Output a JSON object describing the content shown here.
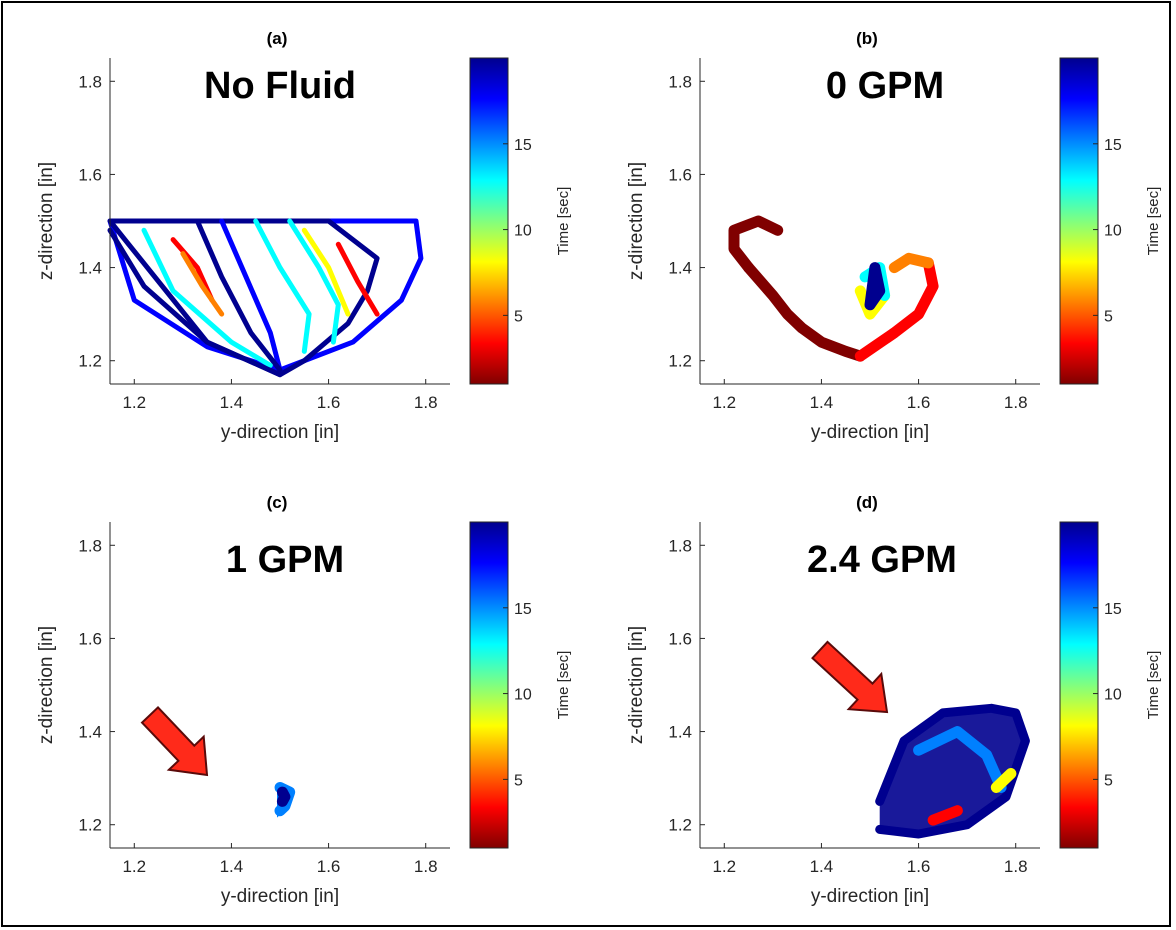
{
  "colormap": [
    "#800000",
    "#ff0000",
    "#ff8000",
    "#ffff00",
    "#80ff80",
    "#00ffff",
    "#0080ff",
    "#0000ff",
    "#00008f"
  ],
  "chart_data": [
    {
      "type": "line",
      "panel": "(a)",
      "annotation": "No Fluid",
      "xlabel": "y-direction [in]",
      "ylabel": "z-direction [in]",
      "xlim": [
        1.15,
        1.85
      ],
      "ylim": [
        1.15,
        1.85
      ],
      "xticks": [
        "1.2",
        "1.4",
        "1.6",
        "1.8"
      ],
      "yticks": [
        "1.2",
        "1.4",
        "1.6",
        "1.8"
      ],
      "colorbar": {
        "label": "Time [sec]",
        "ticks": [
          "5",
          "10",
          "15"
        ],
        "range": [
          1,
          20
        ]
      },
      "series": [
        {
          "t": 18,
          "x": [
            1.15,
            1.78,
            1.79,
            1.75,
            1.65,
            1.5,
            1.35,
            1.2,
            1.15
          ],
          "y": [
            1.5,
            1.5,
            1.42,
            1.33,
            1.24,
            1.18,
            1.23,
            1.33,
            1.5
          ]
        },
        {
          "t": 19,
          "x": [
            1.15,
            1.6,
            1.7,
            1.68,
            1.64,
            1.55,
            1.5,
            1.35,
            1.15
          ],
          "y": [
            1.5,
            1.5,
            1.42,
            1.35,
            1.28,
            1.2,
            1.17,
            1.24,
            1.5
          ]
        },
        {
          "t": 17,
          "x": [
            1.38,
            1.43,
            1.48,
            1.5
          ],
          "y": [
            1.5,
            1.38,
            1.26,
            1.18
          ]
        },
        {
          "t": 19,
          "x": [
            1.33,
            1.38,
            1.44,
            1.5
          ],
          "y": [
            1.5,
            1.38,
            1.26,
            1.18
          ]
        },
        {
          "t": 14,
          "x": [
            1.52,
            1.58,
            1.62,
            1.61
          ],
          "y": [
            1.5,
            1.4,
            1.32,
            1.24
          ]
        },
        {
          "t": 4,
          "x": [
            1.62,
            1.66,
            1.7
          ],
          "y": [
            1.45,
            1.37,
            1.3
          ]
        },
        {
          "t": 8,
          "x": [
            1.55,
            1.6,
            1.64
          ],
          "y": [
            1.48,
            1.4,
            1.3
          ]
        },
        {
          "t": 3,
          "x": [
            1.28,
            1.33,
            1.36
          ],
          "y": [
            1.46,
            1.4,
            1.33
          ]
        },
        {
          "t": 12,
          "x": [
            1.22,
            1.28,
            1.4,
            1.48
          ],
          "y": [
            1.48,
            1.35,
            1.24,
            1.19
          ]
        },
        {
          "t": 6,
          "x": [
            1.3,
            1.34,
            1.38
          ],
          "y": [
            1.43,
            1.36,
            1.3
          ]
        },
        {
          "t": 20,
          "x": [
            1.15,
            1.22,
            1.35,
            1.5
          ],
          "y": [
            1.48,
            1.36,
            1.24,
            1.17
          ]
        },
        {
          "t": 13,
          "x": [
            1.45,
            1.5,
            1.56,
            1.55
          ],
          "y": [
            1.5,
            1.4,
            1.3,
            1.22
          ]
        }
      ]
    },
    {
      "type": "scatter",
      "panel": "(b)",
      "annotation": "0 GPM",
      "xlabel": "y-direction [in]",
      "ylabel": "z-direction [in]",
      "xlim": [
        1.15,
        1.85
      ],
      "ylim": [
        1.15,
        1.85
      ],
      "xticks": [
        "1.2",
        "1.4",
        "1.6",
        "1.8"
      ],
      "yticks": [
        "1.2",
        "1.4",
        "1.6",
        "1.8"
      ],
      "colorbar": {
        "label": "Time [sec]",
        "ticks": [
          "5",
          "10",
          "15"
        ],
        "range": [
          1,
          20
        ]
      },
      "series": [
        {
          "t": 1,
          "x": [
            1.31,
            1.27,
            1.22,
            1.22,
            1.25
          ],
          "y": [
            1.48,
            1.5,
            1.48,
            1.44,
            1.4
          ]
        },
        {
          "t": 2,
          "x": [
            1.25,
            1.3,
            1.33,
            1.36,
            1.4,
            1.45,
            1.48
          ],
          "y": [
            1.4,
            1.34,
            1.3,
            1.27,
            1.24,
            1.22,
            1.21
          ]
        },
        {
          "t": 4,
          "x": [
            1.48,
            1.55,
            1.6,
            1.63,
            1.62
          ],
          "y": [
            1.21,
            1.26,
            1.3,
            1.36,
            1.41
          ]
        },
        {
          "t": 6,
          "x": [
            1.62,
            1.58,
            1.55
          ],
          "y": [
            1.41,
            1.42,
            1.4
          ]
        },
        {
          "t": 9,
          "x": [
            1.48,
            1.5,
            1.53
          ],
          "y": [
            1.35,
            1.3,
            1.34
          ]
        },
        {
          "t": 12,
          "x": [
            1.53,
            1.52,
            1.49
          ],
          "y": [
            1.34,
            1.4,
            1.38
          ]
        },
        {
          "t": 19,
          "x": [
            1.5,
            1.51,
            1.52,
            1.5
          ],
          "y": [
            1.32,
            1.4,
            1.35,
            1.32
          ]
        }
      ]
    },
    {
      "type": "scatter",
      "panel": "(c)",
      "annotation": "1 GPM",
      "xlabel": "y-direction [in]",
      "ylabel": "z-direction [in]",
      "xlim": [
        1.15,
        1.85
      ],
      "ylim": [
        1.15,
        1.85
      ],
      "xticks": [
        "1.2",
        "1.4",
        "1.6",
        "1.8"
      ],
      "yticks": [
        "1.2",
        "1.4",
        "1.6",
        "1.8"
      ],
      "colorbar": {
        "label": "Time [sec]",
        "ticks": [
          "5",
          "10",
          "15"
        ],
        "range": [
          1,
          20
        ]
      },
      "series": [
        {
          "t": 16,
          "x": [
            1.5,
            1.52,
            1.51,
            1.5
          ],
          "y": [
            1.28,
            1.27,
            1.24,
            1.23
          ]
        },
        {
          "t": 20,
          "x": [
            1.505,
            1.51,
            1.505
          ],
          "y": [
            1.27,
            1.26,
            1.25
          ]
        }
      ]
    },
    {
      "type": "scatter",
      "panel": "(d)",
      "annotation": "2.4 GPM",
      "xlabel": "y-direction [in]",
      "ylabel": "z-direction [in]",
      "xlim": [
        1.15,
        1.85
      ],
      "ylim": [
        1.15,
        1.85
      ],
      "xticks": [
        "1.2",
        "1.4",
        "1.6",
        "1.8"
      ],
      "yticks": [
        "1.2",
        "1.4",
        "1.6",
        "1.8"
      ],
      "colorbar": {
        "label": "Time [sec]",
        "ticks": [
          "5",
          "10",
          "15"
        ],
        "range": [
          1,
          20
        ]
      },
      "series": [
        {
          "t": 19,
          "x": [
            1.52,
            1.6,
            1.7,
            1.78,
            1.82,
            1.8,
            1.75,
            1.65,
            1.57,
            1.52
          ],
          "y": [
            1.19,
            1.18,
            1.2,
            1.26,
            1.38,
            1.44,
            1.45,
            1.44,
            1.38,
            1.25
          ]
        },
        {
          "t": 16,
          "x": [
            1.6,
            1.68,
            1.74,
            1.77
          ],
          "y": [
            1.36,
            1.4,
            1.35,
            1.28
          ]
        },
        {
          "t": 3,
          "x": [
            1.63,
            1.68
          ],
          "y": [
            1.21,
            1.23
          ]
        },
        {
          "t": 7,
          "x": [
            1.76,
            1.79
          ],
          "y": [
            1.28,
            1.31
          ]
        }
      ]
    }
  ]
}
